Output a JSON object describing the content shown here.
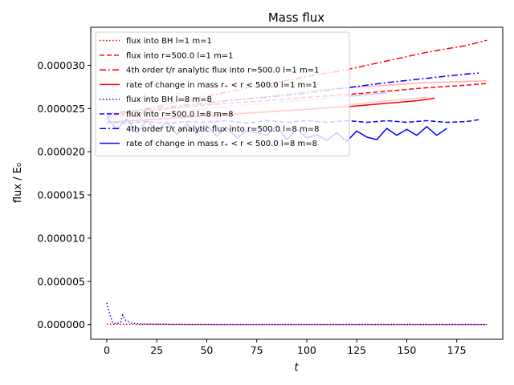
{
  "chart_data": {
    "type": "line",
    "title": "Mass flux",
    "xlabel": "t",
    "ylabel": "flux / E₀",
    "xlim": [
      -8,
      198
    ],
    "ylim": [
      -1.7e-06,
      3.44e-05
    ],
    "xticks": [
      0,
      25,
      50,
      75,
      100,
      125,
      150,
      175
    ],
    "yticks": [
      0,
      5e-06,
      1e-05,
      1.5e-05,
      2e-05,
      2.5e-05,
      3e-05
    ],
    "ytick_labels": [
      "0.000000",
      "0.000005",
      "0.000010",
      "0.000015",
      "0.000020",
      "0.000025",
      "0.000030"
    ],
    "xtick_labels": [
      "0",
      "25",
      "50",
      "75",
      "100",
      "125",
      "150",
      "175"
    ],
    "grid": false,
    "legend_position": "upper-left",
    "series": [
      {
        "name": "flux into BH l=1 m=1",
        "color": "#ff0000",
        "style": "dotted",
        "x": [
          0,
          5,
          10,
          20,
          40,
          60,
          80,
          100,
          120,
          140,
          160,
          180,
          190
        ],
        "y": [
          5e-08,
          4e-08,
          3e-08,
          2e-08,
          1e-08,
          1e-08,
          1e-08,
          1e-08,
          1e-08,
          1e-08,
          1e-08,
          1e-08,
          1e-08
        ]
      },
      {
        "name": "flux into r=500.0 l=1 m=1",
        "color": "#ff0000",
        "style": "dashed",
        "x": [
          0,
          20,
          40,
          60,
          80,
          100,
          120,
          140,
          160,
          180,
          190
        ],
        "y": [
          2.41e-05,
          2.47e-05,
          2.52e-05,
          2.56e-05,
          2.59e-05,
          2.63e-05,
          2.66e-05,
          2.7e-05,
          2.74e-05,
          2.77e-05,
          2.79e-05
        ]
      },
      {
        "name": "4th order t/r analytic flux into r=500.0 l=1 m=1",
        "color": "#ff0000",
        "style": "dashdot",
        "x": [
          0,
          20,
          40,
          60,
          80,
          100,
          120,
          140,
          160,
          180,
          190
        ],
        "y": [
          2.4e-05,
          2.5e-05,
          2.6e-05,
          2.69e-05,
          2.78e-05,
          2.87e-05,
          2.95e-05,
          3.05e-05,
          3.15e-05,
          3.23e-05,
          3.29e-05
        ]
      },
      {
        "name": "rate of change in mass r₊ < r < 500.0 l=1 m=1",
        "color": "#ff0000",
        "style": "solid",
        "x": [
          0,
          20,
          40,
          60,
          80,
          100,
          120,
          140,
          155,
          164
        ],
        "y": [
          2.34e-05,
          2.37e-05,
          2.4e-05,
          2.43e-05,
          2.46e-05,
          2.49e-05,
          2.52e-05,
          2.56e-05,
          2.59e-05,
          2.62e-05
        ]
      },
      {
        "name": "flux into BH l=8 m=8",
        "color": "#0000ff",
        "style": "dotted",
        "x": [
          0,
          1.5,
          3,
          5,
          7,
          8,
          9.5,
          12,
          15,
          20,
          40,
          60,
          80,
          100,
          120,
          140,
          160,
          180,
          190
        ],
        "y": [
          2.5e-06,
          1.2e-06,
          2e-07,
          1e-07,
          3e-07,
          1.1e-06,
          5e-07,
          2e-07,
          1e-07,
          5e-08,
          2e-08,
          1e-08,
          1e-08,
          1e-08,
          1e-08,
          1e-08,
          1e-08,
          1e-08,
          1e-08
        ]
      },
      {
        "name": "flux into r=500.0 l=8 m=8",
        "color": "#0000ff",
        "style": "dashed",
        "x": [
          0,
          10,
          20,
          30,
          40,
          50,
          60,
          70,
          80,
          90,
          100,
          110,
          120,
          130,
          140,
          150,
          160,
          170,
          180,
          186
        ],
        "y": [
          2.34e-05,
          2.33e-05,
          2.35e-05,
          2.33e-05,
          2.35e-05,
          2.34e-05,
          2.36e-05,
          2.33e-05,
          2.36e-05,
          2.34e-05,
          2.36e-05,
          2.34e-05,
          2.36e-05,
          2.34e-05,
          2.36e-05,
          2.34e-05,
          2.36e-05,
          2.34e-05,
          2.35e-05,
          2.37e-05
        ]
      },
      {
        "name": "4th order t/r analytic flux into r=500.0 l=8 m=8",
        "color": "#0000ff",
        "style": "dashdot",
        "x": [
          0,
          20,
          40,
          60,
          80,
          100,
          120,
          140,
          160,
          180,
          186
        ],
        "y": [
          2.44e-05,
          2.49e-05,
          2.54e-05,
          2.59e-05,
          2.63e-05,
          2.68e-05,
          2.74e-05,
          2.8e-05,
          2.85e-05,
          2.9e-05,
          2.91e-05
        ]
      },
      {
        "name": "rate of change in mass r₊ < r < 500.0 l=8 m=8",
        "color": "#0000ff",
        "style": "solid",
        "x": [
          0,
          5,
          10,
          15,
          20,
          25,
          30,
          35,
          40,
          45,
          50,
          55,
          60,
          65,
          70,
          75,
          80,
          85,
          90,
          95,
          100,
          105,
          110,
          115,
          120,
          125,
          130,
          135,
          140,
          145,
          150,
          155,
          160,
          165,
          170
        ],
        "y": [
          2.4e-05,
          2.26e-05,
          2.38e-05,
          2.22e-05,
          2.36e-05,
          2.24e-05,
          2.34e-05,
          2.2e-05,
          2.32e-05,
          2.22e-05,
          2.3e-05,
          2.18e-05,
          2.28e-05,
          2.16e-05,
          2.24e-05,
          2.22e-05,
          2.19e-05,
          2.3e-05,
          2.14e-05,
          2.26e-05,
          2.16e-05,
          2.2e-05,
          2.13e-05,
          2.22e-05,
          2.12e-05,
          2.24e-05,
          2.17e-05,
          2.14e-05,
          2.27e-05,
          2.19e-05,
          2.26e-05,
          2.19e-05,
          2.29e-05,
          2.19e-05,
          2.27e-05
        ]
      }
    ],
    "faint_series": [
      {
        "color": "#ffb0b0",
        "x": [
          0,
          20,
          40,
          60,
          80,
          100,
          120,
          140,
          160,
          190
        ],
        "y": [
          2.38e-05,
          2.46e-05,
          2.52e-05,
          2.59e-05,
          2.64e-05,
          2.7e-05,
          2.74e-05,
          2.77e-05,
          2.8e-05,
          2.82e-05
        ]
      },
      {
        "color": "#ffcaca",
        "x": [
          0,
          20,
          40,
          60,
          80,
          100,
          120,
          140,
          160
        ],
        "y": [
          2.33e-05,
          2.36e-05,
          2.4e-05,
          2.44e-05,
          2.47e-05,
          2.51e-05,
          2.54e-05,
          2.59e-05,
          2.63e-05
        ]
      },
      {
        "color": "#c8c8ff",
        "x": [
          0,
          20,
          40,
          60,
          80,
          100,
          120,
          140
        ],
        "y": [
          2.38e-05,
          2.43e-05,
          2.48e-05,
          2.52e-05,
          2.56e-05,
          2.6e-05,
          2.64e-05,
          2.68e-05
        ]
      },
      {
        "color": "#d0d0ff",
        "x": [
          0,
          10,
          20,
          30,
          40,
          50,
          60,
          70,
          80,
          90,
          100,
          110,
          120
        ],
        "y": [
          2.36e-05,
          2.33e-05,
          2.36e-05,
          2.32e-05,
          2.34e-05,
          2.31e-05,
          2.33e-05,
          2.29e-05,
          2.26e-05,
          2.22e-05,
          2.18e-05,
          2.16e-05,
          2.14e-05
        ]
      }
    ]
  }
}
